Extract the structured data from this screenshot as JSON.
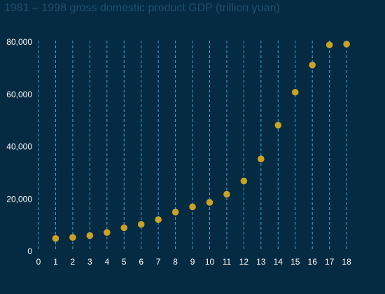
{
  "chart_data": {
    "type": "scatter",
    "title": "1981 – 1998 gross domestic product GDP (trillion yuan)",
    "xlabel": "",
    "ylabel": "",
    "x": [
      1,
      2,
      3,
      4,
      5,
      6,
      7,
      8,
      9,
      10,
      11,
      12,
      13,
      14,
      15,
      16,
      17,
      18
    ],
    "y": [
      4900,
      5300,
      6000,
      7200,
      9000,
      10300,
      12100,
      15000,
      17000,
      18700,
      21800,
      26900,
      35300,
      48200,
      60800,
      71200,
      78900,
      84400
    ],
    "xlim": [
      0,
      18
    ],
    "ylim": [
      0,
      80000
    ],
    "xticks": [
      0,
      1,
      2,
      3,
      4,
      5,
      6,
      7,
      8,
      9,
      10,
      11,
      12,
      13,
      14,
      15,
      16,
      17,
      18
    ],
    "yticks": [
      0,
      20000,
      40000,
      60000,
      80000
    ],
    "ytick_labels": [
      "0",
      "20,000",
      "40,000",
      "60,000",
      "80,000"
    ],
    "grid": "vertical-dashed",
    "colors": {
      "background": "#052b42",
      "point": "#c9a227",
      "grid": "#3aa3d8",
      "title": "#1f4e6d",
      "text": "#ffffff"
    }
  }
}
